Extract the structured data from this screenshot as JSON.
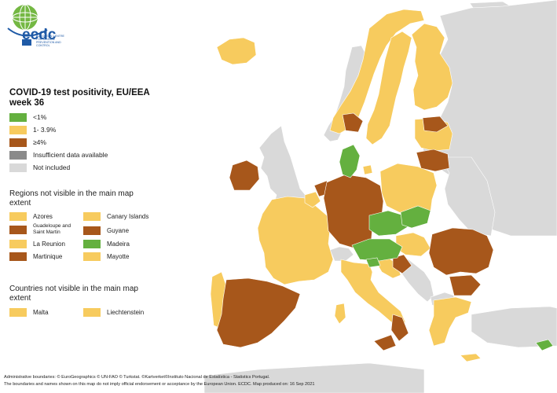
{
  "colors": {
    "green": "#64b03f",
    "yellow": "#f7cb5e",
    "brown": "#a7571b",
    "grey": "#8a8a8a",
    "not_included": "#d9d9d9",
    "sea": "#ffffff",
    "border": "#ffffff"
  },
  "logo": {
    "name": "ecdc",
    "subtitle": "EUROPEAN CENTRE FOR DISEASE PREVENTION AND CONTROL"
  },
  "title": "COVID-19 test positivity, EU/EEA week 36",
  "legend": [
    {
      "label": "<1%",
      "color": "#64b03f"
    },
    {
      "label": "1- 3.9%",
      "color": "#f7cb5e"
    },
    {
      "label": "≥4%",
      "color": "#a7571b"
    },
    {
      "label": "Insufficient data available",
      "color": "#8a8a8a"
    },
    {
      "label": "Not included",
      "color": "#d9d9d9"
    }
  ],
  "regions_section": {
    "title": "Regions not visible in the main map extent",
    "items": [
      {
        "label": "Azores",
        "color": "#f7cb5e"
      },
      {
        "label": "Canary Islands",
        "color": "#f7cb5e"
      },
      {
        "label": "Guadeloupe and Saint Martin",
        "color": "#a7571b"
      },
      {
        "label": "Guyane",
        "color": "#a7571b"
      },
      {
        "label": "La Reunion",
        "color": "#f7cb5e"
      },
      {
        "label": "Madeira",
        "color": "#64b03f"
      },
      {
        "label": "Martinique",
        "color": "#a7571b"
      },
      {
        "label": "Mayotte",
        "color": "#f7cb5e"
      }
    ]
  },
  "countries_section": {
    "title": "Countries not visible in the main map extent",
    "items": [
      {
        "label": "Malta",
        "color": "#f7cb5e"
      },
      {
        "label": "Liechtenstein",
        "color": "#f7cb5e"
      }
    ]
  },
  "footer": {
    "line1": "Administrative boundaries: © EuroGeographics © UN-FAO © Turkstat. ©Kartverket©Instituto Nacional de Estatística - Statistics Portugal.",
    "line2": "The boundaries and names shown on this map do not imply official endorsement or acceptance by the European Union. ECDC. Map produced on: 16 Sep 2021"
  }
}
